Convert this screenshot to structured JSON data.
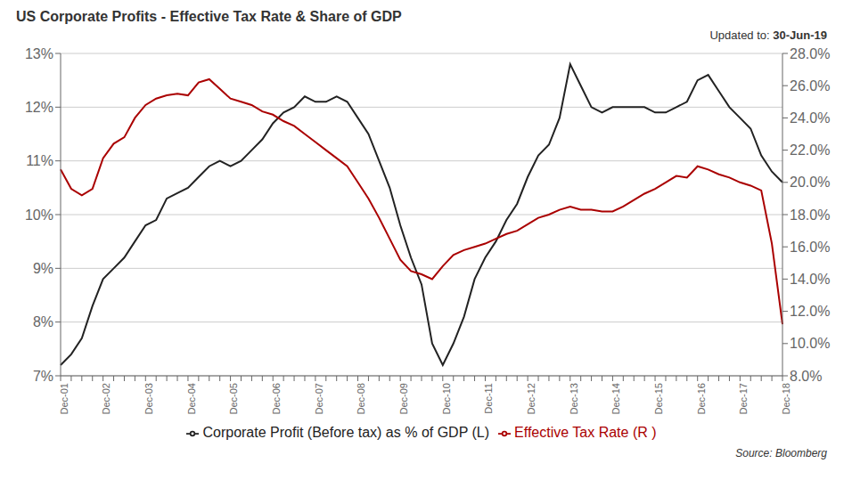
{
  "chart_data": {
    "type": "line",
    "title": "US Corporate Profits - Effective Tax Rate & Share of GDP",
    "categories": [
      "Dec-01",
      null,
      null,
      null,
      "Dec-02",
      null,
      null,
      null,
      "Dec-03",
      null,
      null,
      null,
      "Dec-04",
      null,
      null,
      null,
      "Dec-05",
      null,
      null,
      null,
      "Dec-06",
      null,
      null,
      null,
      "Dec-07",
      null,
      null,
      null,
      "Dec-08",
      null,
      null,
      null,
      "Dec-09",
      null,
      null,
      null,
      "Dec-10",
      null,
      null,
      null,
      "Dec-11",
      null,
      null,
      null,
      "Dec-12",
      null,
      null,
      null,
      "Dec-13",
      null,
      null,
      null,
      "Dec-14",
      null,
      null,
      null,
      "Dec-15",
      null,
      null,
      null,
      "Dec-16",
      null,
      null,
      null,
      "Dec-17",
      null,
      null,
      null,
      "Dec-18"
    ],
    "series": [
      {
        "name": "Corporate Profit (Before tax) as % of GDP (L)",
        "color": "#222222",
        "axis": "y",
        "values": [
          0.072,
          0.074,
          0.077,
          0.083,
          0.088,
          0.09,
          0.092,
          0.095,
          0.098,
          0.099,
          0.103,
          0.104,
          0.105,
          0.107,
          0.109,
          0.11,
          0.109,
          0.11,
          0.112,
          0.114,
          0.117,
          0.119,
          0.12,
          0.122,
          0.121,
          0.121,
          0.122,
          0.121,
          0.118,
          0.115,
          0.11,
          0.105,
          0.098,
          0.092,
          0.087,
          0.076,
          0.072,
          0.076,
          0.081,
          0.088,
          0.092,
          0.095,
          0.099,
          0.102,
          0.107,
          0.111,
          0.113,
          0.118,
          0.128,
          0.124,
          0.12,
          0.119,
          0.12,
          0.12,
          0.12,
          0.12,
          0.119,
          0.119,
          0.12,
          0.121,
          0.125,
          0.126,
          0.123,
          0.12,
          0.118,
          0.116,
          0.111,
          0.108,
          0.106
        ]
      },
      {
        "name": "Effective Tax Rate (R )",
        "color": "#aa0000",
        "axis": "y2",
        "values": [
          0.208,
          0.196,
          0.192,
          0.196,
          0.215,
          0.224,
          0.228,
          0.24,
          0.248,
          0.252,
          0.254,
          0.255,
          0.254,
          0.262,
          0.264,
          0.258,
          0.252,
          0.25,
          0.248,
          0.244,
          0.242,
          0.238,
          0.235,
          0.23,
          0.225,
          0.22,
          0.215,
          0.21,
          0.2,
          0.19,
          0.178,
          0.165,
          0.152,
          0.145,
          0.143,
          0.14,
          0.148,
          0.155,
          0.158,
          0.16,
          0.162,
          0.165,
          0.168,
          0.17,
          0.174,
          0.178,
          0.18,
          0.183,
          0.185,
          0.183,
          0.183,
          0.182,
          0.182,
          0.185,
          0.189,
          0.193,
          0.196,
          0.2,
          0.204,
          0.203,
          0.21,
          0.208,
          0.205,
          0.203,
          0.2,
          0.198,
          0.195,
          0.162,
          0.112
        ]
      }
    ],
    "ylim": [
      0.07,
      0.13
    ],
    "yticks": [
      {
        "value": 0.07,
        "label": "7%"
      },
      {
        "value": 0.08,
        "label": "8%"
      },
      {
        "value": 0.09,
        "label": "9%"
      },
      {
        "value": 0.1,
        "label": "10%"
      },
      {
        "value": 0.11,
        "label": "11%"
      },
      {
        "value": 0.12,
        "label": "12%"
      },
      {
        "value": 0.13,
        "label": "13%"
      }
    ],
    "y2lim": [
      0.08,
      0.28
    ],
    "y2ticks": [
      {
        "value": 0.08,
        "label": "8.0%"
      },
      {
        "value": 0.1,
        "label": "10.0%"
      },
      {
        "value": 0.12,
        "label": "12.0%"
      },
      {
        "value": 0.14,
        "label": "14.0%"
      },
      {
        "value": 0.16,
        "label": "16.0%"
      },
      {
        "value": 0.18,
        "label": "18.0%"
      },
      {
        "value": 0.2,
        "label": "20.0%"
      },
      {
        "value": 0.22,
        "label": "22.0%"
      },
      {
        "value": 0.24,
        "label": "24.0%"
      },
      {
        "value": 0.26,
        "label": "26.0%"
      },
      {
        "value": 0.28,
        "label": "28.0%"
      }
    ],
    "grid": true,
    "legend": "bottom",
    "annotations": [
      "Updated to:",
      "30-Jun-19",
      "Source: Bloomberg"
    ]
  }
}
